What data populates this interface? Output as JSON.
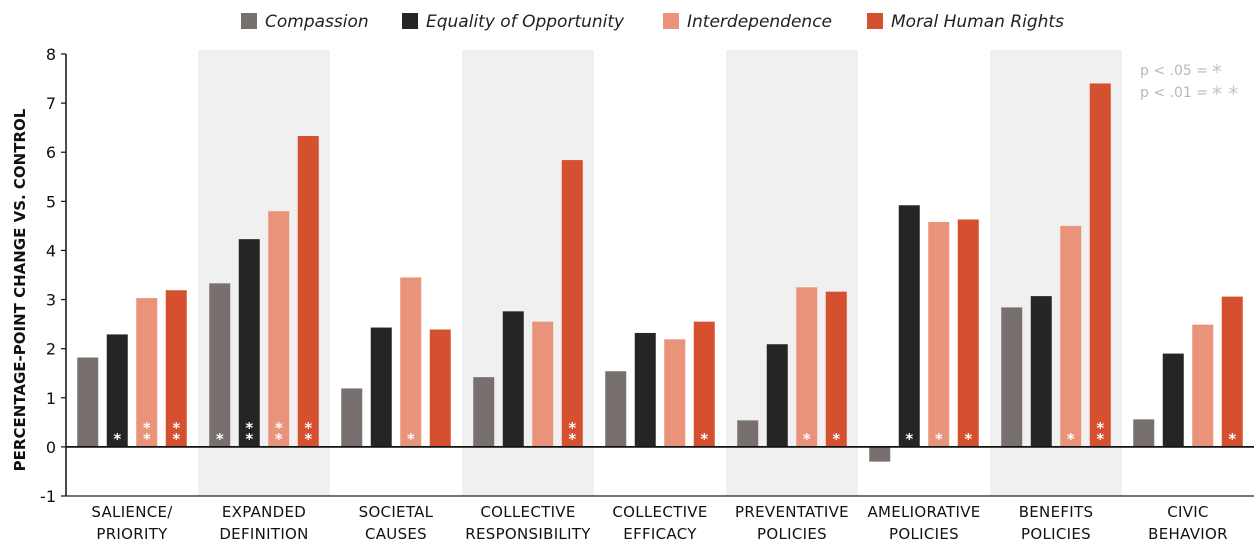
{
  "chart_data": {
    "type": "bar",
    "ylabel": "PERCENTAGE-POINT CHANGE VS. CONTROL",
    "ylim": [
      -1,
      8
    ],
    "yticks": [
      "-1",
      "0",
      "1",
      "2",
      "3",
      "4",
      "5",
      "6",
      "7",
      "8"
    ],
    "legend_position": "top",
    "categories": [
      [
        "SALIENCE/",
        "PRIORITY"
      ],
      [
        "EXPANDED",
        "DEFINITION"
      ],
      [
        "SOCIETAL",
        "CAUSES"
      ],
      [
        "COLLECTIVE",
        "RESPONSIBILITY"
      ],
      [
        "COLLECTIVE",
        "EFFICACY"
      ],
      [
        "PREVENTATIVE",
        "POLICIES"
      ],
      [
        "AMELIORATIVE",
        "POLICIES"
      ],
      [
        "BENEFITS",
        "POLICIES"
      ],
      [
        "CIVIC",
        "BEHAVIOR"
      ]
    ],
    "shaded_categories": [
      1,
      3,
      5,
      7
    ],
    "series": [
      {
        "name": "Compassion",
        "color": "#77706f",
        "values": [
          1.82,
          3.33,
          1.19,
          1.42,
          1.54,
          0.54,
          -0.3,
          2.84,
          0.56
        ],
        "significance": [
          0,
          1,
          0,
          0,
          0,
          0,
          0,
          0,
          0
        ]
      },
      {
        "name": "Equality of Opportunity",
        "color": "#252525",
        "values": [
          2.29,
          4.23,
          2.43,
          2.76,
          2.32,
          2.09,
          4.92,
          3.07,
          1.9
        ],
        "significance": [
          1,
          2,
          0,
          0,
          0,
          0,
          1,
          0,
          0
        ]
      },
      {
        "name": "Interdependence",
        "color": "#e9937a",
        "values": [
          3.03,
          4.8,
          3.45,
          2.55,
          2.19,
          3.25,
          4.58,
          4.5,
          2.49
        ],
        "significance": [
          2,
          2,
          1,
          0,
          0,
          1,
          1,
          1,
          0
        ]
      },
      {
        "name": "Moral Human Rights",
        "color": "#d5502f",
        "values": [
          3.19,
          6.33,
          2.39,
          5.84,
          2.55,
          3.16,
          4.63,
          7.4,
          3.06
        ],
        "significance": [
          2,
          2,
          0,
          2,
          1,
          1,
          1,
          2,
          1
        ]
      }
    ],
    "significance_key": [
      {
        "label": "p < .05 =",
        "stars": "*"
      },
      {
        "label": "p < .01 =",
        "stars": "**"
      }
    ]
  },
  "colors": {
    "shade": "#f0f0f0",
    "star_on_light": "#ffffff",
    "star_key": "#c4c4c4"
  }
}
